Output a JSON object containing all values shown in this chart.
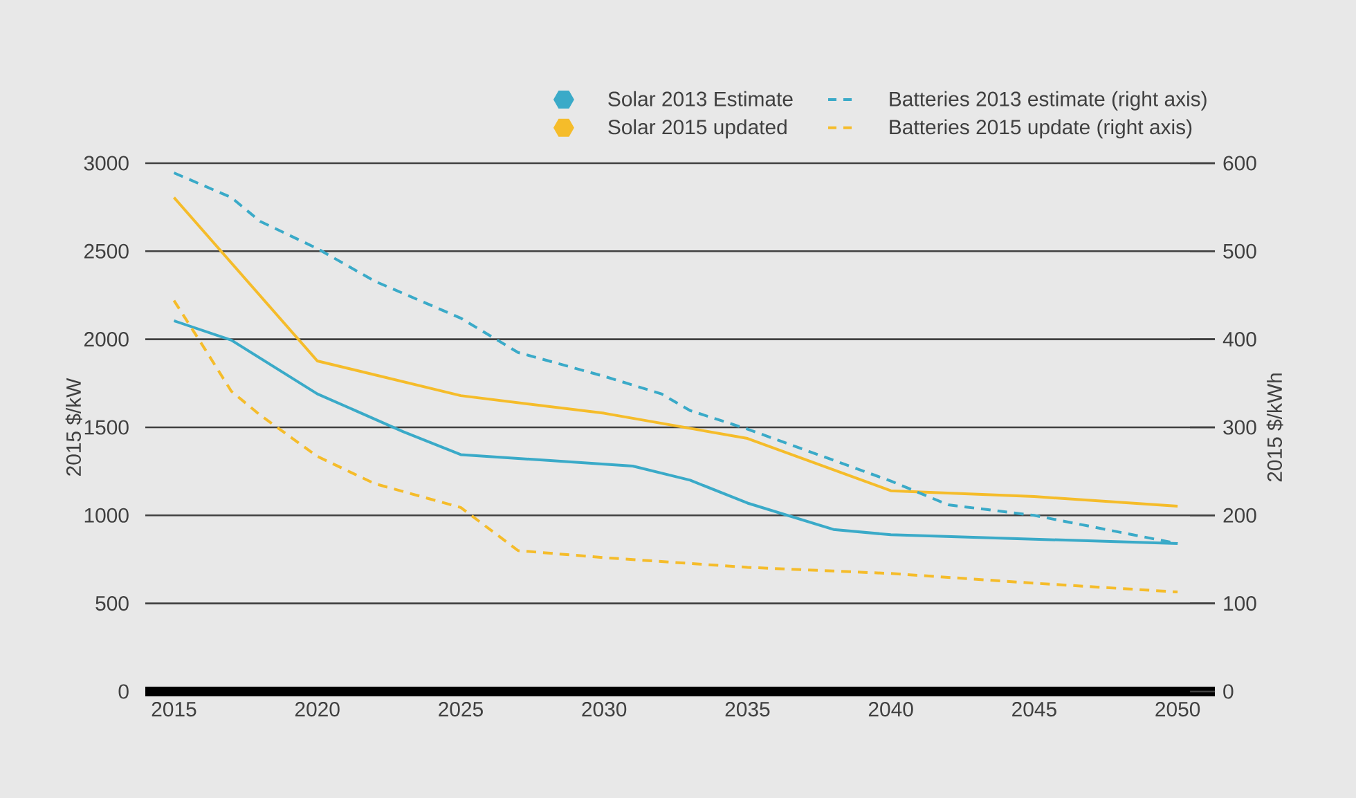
{
  "chart_data": {
    "type": "line",
    "x": [
      2015,
      2017,
      2020,
      2023,
      2025,
      2031,
      2033,
      2035,
      2038,
      2040,
      2045,
      2050
    ],
    "series": [
      {
        "name": "Solar 2013 Estimate",
        "color": "#3aaac8",
        "line_style": "solid",
        "values": [
          2105,
          1995,
          1690,
          1475,
          1345,
          1280,
          1200,
          1070,
          920,
          890,
          865,
          840
        ]
      },
      {
        "name": "Solar 2015 updated",
        "color": "#f5bc2a",
        "line_style": "solid",
        "x": [
          2015,
          2020,
          2025,
          2030,
          2035,
          2040,
          2045,
          2050
        ],
        "values": [
          2805,
          1877,
          1680,
          1580,
          1437,
          1140,
          1107,
          1052
        ]
      },
      {
        "name": "Batteries 2013 estimate (right axis)",
        "color": "#3aaac8",
        "line_style": "dashed",
        "axis": "y2",
        "x": [
          2015,
          2017,
          2018,
          2020,
          2022,
          2025,
          2027,
          2030,
          2032,
          2033,
          2035,
          2040,
          2042,
          2045,
          2050
        ],
        "values": [
          589,
          561,
          534,
          503,
          466,
          424,
          385,
          358,
          338,
          319,
          298,
          239,
          212,
          200,
          168
        ]
      },
      {
        "name": "Batteries 2015 update (right axis)",
        "color": "#f5bc2a",
        "line_style": "dashed",
        "axis": "y2",
        "x": [
          2015,
          2016,
          2017,
          2018,
          2020,
          2022,
          2025,
          2027,
          2030,
          2035,
          2040,
          2045,
          2050
        ],
        "values": [
          444,
          393,
          341,
          314,
          267,
          236,
          209,
          160,
          152,
          141,
          134,
          123,
          113
        ]
      }
    ],
    "xlim": [
      2014,
      2051.3
    ],
    "xticks": [
      2015,
      2020,
      2025,
      2030,
      2035,
      2040,
      2045,
      2050
    ],
    "ylim": [
      0,
      3000
    ],
    "yticks": [
      0,
      500,
      1000,
      1500,
      2000,
      2500,
      3000
    ],
    "y2lim": [
      0,
      600
    ],
    "y2ticks": [
      0,
      100,
      200,
      300,
      400,
      500,
      600
    ],
    "ylabel": "2015 $/kW",
    "y2label": "2015 $/kWh",
    "grid": "y",
    "legend": "top"
  }
}
